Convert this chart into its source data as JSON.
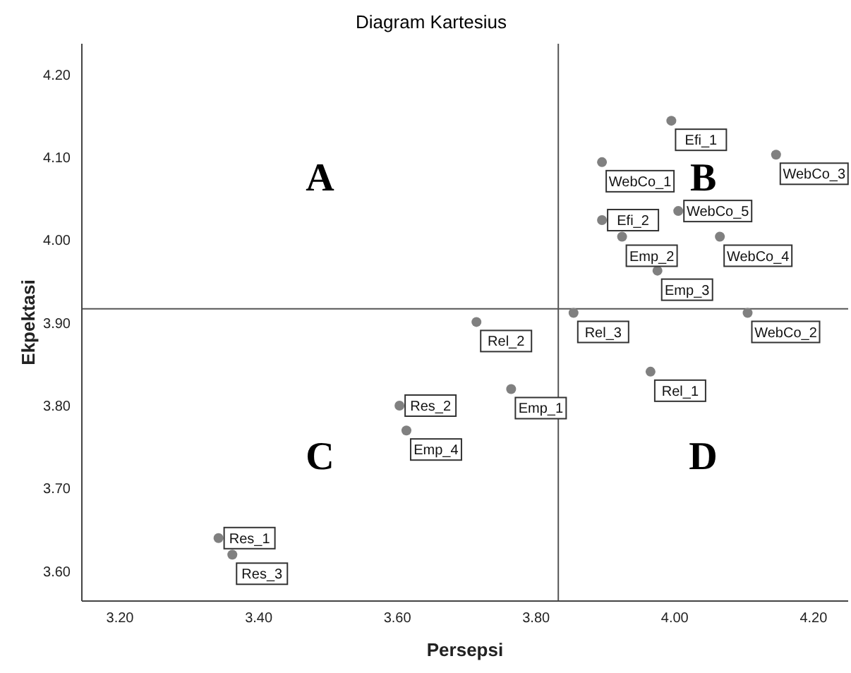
{
  "chart_data": {
    "type": "scatter",
    "title": "Diagram Kartesius",
    "xlabel": "Persepsi",
    "ylabel": "Ekpektasi",
    "x": [
      3.995,
      3.895,
      4.146,
      3.895,
      3.924,
      4.005,
      4.065,
      3.975,
      3.854,
      4.105,
      3.965,
      3.714,
      3.764,
      3.603,
      3.613,
      3.342,
      3.362
    ],
    "series": [
      {
        "color": "#808080",
        "values": [
          4.144,
          4.094,
          4.103,
          4.024,
          4.004,
          4.035,
          4.004,
          3.963,
          3.912,
          3.912,
          3.841,
          3.901,
          3.82,
          3.8,
          3.77,
          3.64,
          3.62
        ]
      }
    ],
    "annotations": [
      {
        "text": "Efi_1",
        "x": 3.995,
        "y": 4.144
      },
      {
        "text": "WebCo_1",
        "x": 3.895,
        "y": 4.094
      },
      {
        "text": "WebCo_3",
        "x": 4.146,
        "y": 4.103
      },
      {
        "text": "Efi_2",
        "x": 3.895,
        "y": 4.024
      },
      {
        "text": "Emp_2",
        "x": 3.924,
        "y": 4.004
      },
      {
        "text": "WebCo_5",
        "x": 4.005,
        "y": 4.035
      },
      {
        "text": "WebCo_4",
        "x": 4.065,
        "y": 4.004
      },
      {
        "text": "Emp_3",
        "x": 3.975,
        "y": 3.963
      },
      {
        "text": "Rel_3",
        "x": 3.854,
        "y": 3.912
      },
      {
        "text": "WebCo_2",
        "x": 4.105,
        "y": 3.912
      },
      {
        "text": "Rel_1",
        "x": 3.965,
        "y": 3.841
      },
      {
        "text": "Rel_2",
        "x": 3.714,
        "y": 3.901
      },
      {
        "text": "Emp_1",
        "x": 3.764,
        "y": 3.82
      },
      {
        "text": "Res_2",
        "x": 3.603,
        "y": 3.8
      },
      {
        "text": "Emp_4",
        "x": 3.613,
        "y": 3.77
      },
      {
        "text": "Res_1",
        "x": 3.342,
        "y": 3.64
      },
      {
        "text": "Res_3",
        "x": 3.362,
        "y": 3.62
      },
      "A",
      "B",
      "C",
      "D"
    ],
    "ref_lines": [
      {
        "axis": "x",
        "value": 3.832
      },
      {
        "axis": "y",
        "value": 3.917
      }
    ],
    "xlim": [
      3.145,
      4.25
    ],
    "ylim": [
      3.564,
      4.237
    ],
    "xticks": [
      {
        "value": 3.2,
        "label": "3.20"
      },
      {
        "value": 3.4,
        "label": "3.40"
      },
      {
        "value": 3.6,
        "label": "3.60"
      },
      {
        "value": 3.8,
        "label": "3.80"
      },
      {
        "value": 4.0,
        "label": "4.00"
      },
      {
        "value": 4.2,
        "label": "4.20"
      }
    ],
    "yticks": [
      {
        "value": 3.6,
        "label": "3.60"
      },
      {
        "value": 3.7,
        "label": "3.70"
      },
      {
        "value": 3.8,
        "label": "3.80"
      },
      {
        "value": 3.9,
        "label": "3.90"
      },
      {
        "value": 4.0,
        "label": "4.00"
      },
      {
        "value": 4.1,
        "label": "4.10"
      },
      {
        "value": 4.2,
        "label": "4.20"
      }
    ],
    "grid": false,
    "legend": false,
    "marker": "circle"
  }
}
